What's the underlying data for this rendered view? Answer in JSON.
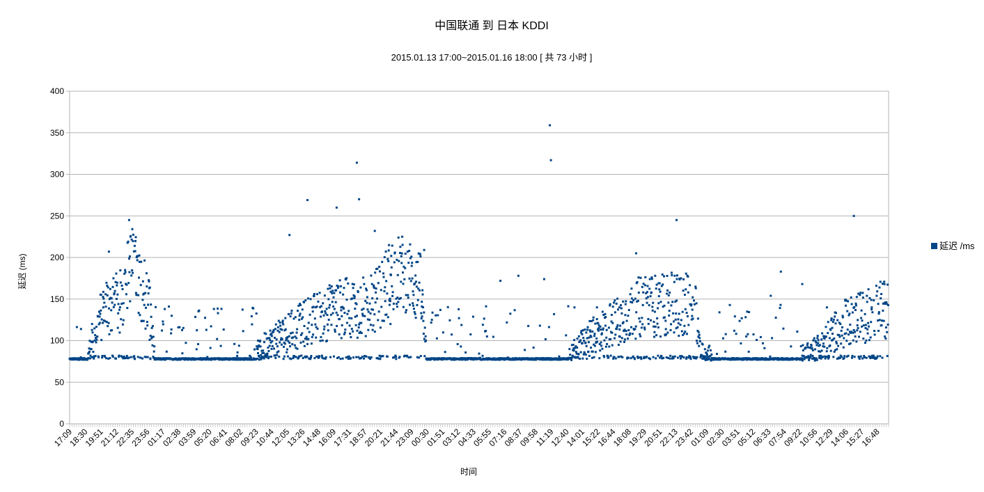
{
  "chart_data": {
    "type": "scatter",
    "title": "中国联通 到 日本 KDDI",
    "subtitle": "2015.01.13 17:00~2015.01.16 18:00 [ 共 73 小时 ]",
    "xlabel": "时间",
    "ylabel": "延迟 (ms)",
    "ylim": [
      0,
      400
    ],
    "yticks": [
      0,
      50,
      100,
      150,
      200,
      250,
      300,
      350,
      400
    ],
    "xlim": [
      17.0,
      90.0
    ],
    "x_unit": "hours from 2015.01.13 00:00",
    "x_tick_labels": [
      "17:09",
      "18:30",
      "19:51",
      "21:12",
      "22:35",
      "23:56",
      "01:17",
      "02:38",
      "03:59",
      "05:20",
      "06:41",
      "08:02",
      "09:23",
      "10:44",
      "12:05",
      "13:26",
      "14:48",
      "16:09",
      "17:31",
      "18:57",
      "20:21",
      "21:44",
      "23:09",
      "00:30",
      "01:51",
      "03:12",
      "04:33",
      "05:55",
      "07:16",
      "08:37",
      "09:58",
      "11:19",
      "12:40",
      "14:01",
      "15:22",
      "16:44",
      "18:08",
      "19:29",
      "20:51",
      "22:13",
      "23:42",
      "01:09",
      "02:30",
      "03:51",
      "05:12",
      "06:33",
      "07:54",
      "09:22",
      "10:56",
      "12:29",
      "14:06",
      "15:27",
      "16:48"
    ],
    "grid": "horizontal",
    "legend_position": "right",
    "series": [
      {
        "name": "延迟 /ms",
        "color": "#004586",
        "baseline_profile_hours": [
          17.0,
          18.6,
          20.0,
          21.5,
          22.5,
          24.0,
          24.6,
          33.4,
          34.5,
          36.5,
          38.5,
          41.0,
          43.2,
          44.5,
          45.5,
          46.5,
          48.3,
          48.8,
          60.0,
          61.5,
          63.0,
          67.0,
          68.0,
          70.0,
          71.6,
          72.8,
          73.2,
          74.5,
          77.0,
          81.5,
          83.5,
          86.0,
          90.0
        ],
        "baseline_profile_ms": [
          78,
          80,
          138,
          145,
          195,
          150,
          78,
          78,
          95,
          110,
          125,
          138,
          140,
          148,
          175,
          185,
          160,
          80,
          78,
          82,
          100,
          135,
          142,
          142,
          145,
          140,
          90,
          80,
          78,
          78,
          90,
          120,
          140
        ],
        "sample_points": [
          [
            17.2,
            78
          ],
          [
            18.0,
            80
          ],
          [
            19.0,
            120
          ],
          [
            20.0,
            140
          ],
          [
            20.5,
            207
          ],
          [
            21.8,
            145
          ],
          [
            22.3,
            245
          ],
          [
            22.8,
            214
          ],
          [
            24.2,
            78
          ],
          [
            25.5,
            77
          ],
          [
            33.8,
            100
          ],
          [
            35.0,
            90
          ],
          [
            36.6,
            227
          ],
          [
            37.5,
            130
          ],
          [
            38.2,
            269
          ],
          [
            39.5,
            135
          ],
          [
            40.8,
            260
          ],
          [
            41.2,
            140
          ],
          [
            42.6,
            314
          ],
          [
            42.8,
            270
          ],
          [
            44.2,
            232
          ],
          [
            45.6,
            120
          ],
          [
            46.1,
            78
          ],
          [
            48.4,
            141
          ],
          [
            48.6,
            209
          ],
          [
            51.0,
            78
          ],
          [
            55.4,
            172
          ],
          [
            57.0,
            178
          ],
          [
            59.3,
            174
          ],
          [
            59.8,
            359
          ],
          [
            59.9,
            317
          ],
          [
            62.0,
            140
          ],
          [
            64.0,
            140
          ],
          [
            66.0,
            140
          ],
          [
            67.5,
            205
          ],
          [
            69.5,
            145
          ],
          [
            71.1,
            245
          ],
          [
            72.0,
            80
          ],
          [
            74.0,
            78
          ],
          [
            79.5,
            154
          ],
          [
            80.4,
            183
          ],
          [
            82.3,
            168
          ],
          [
            84.5,
            140
          ],
          [
            86.9,
            250
          ],
          [
            88.5,
            140
          ]
        ]
      }
    ]
  }
}
